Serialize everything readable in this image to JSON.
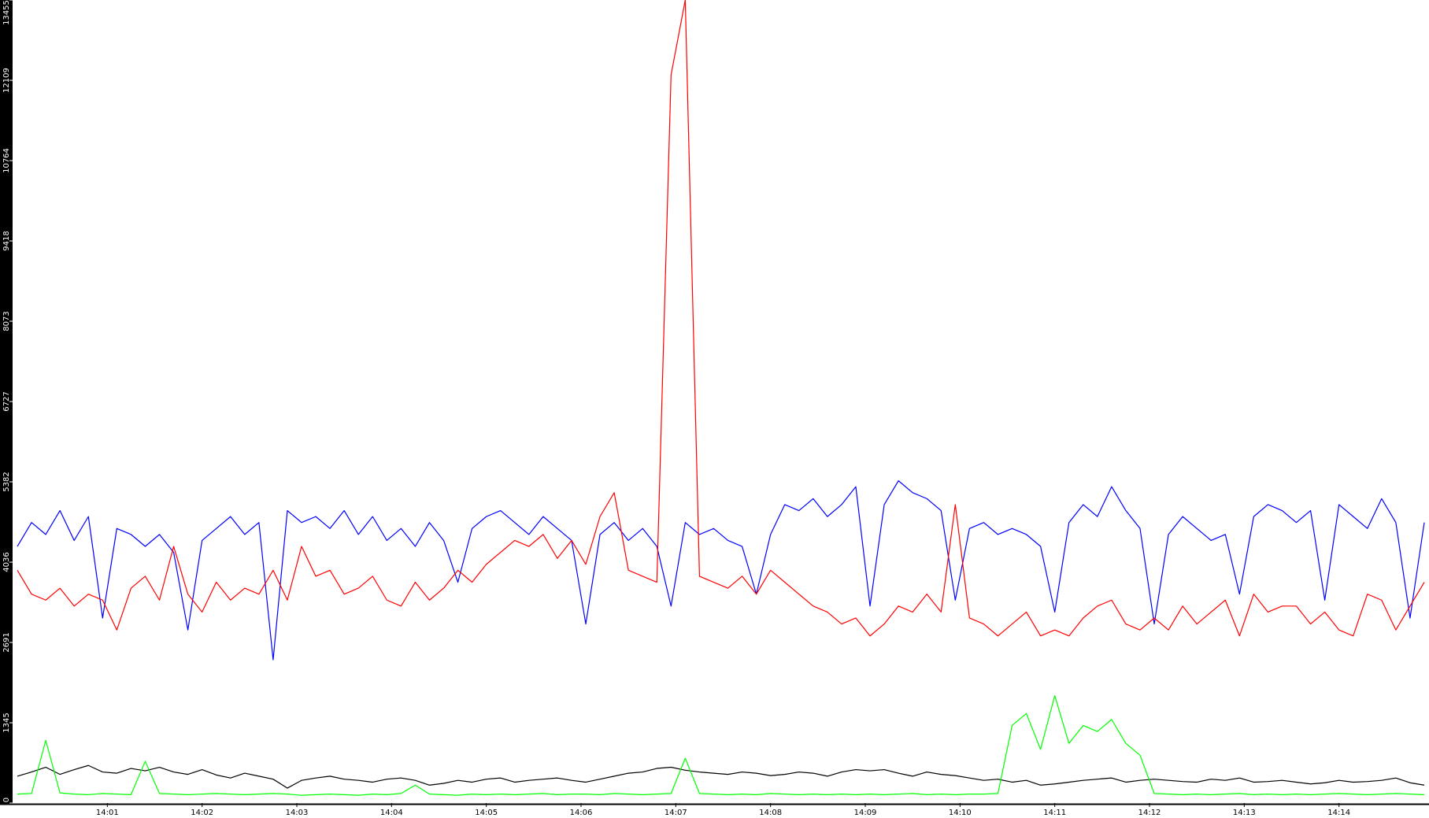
{
  "chart_data": {
    "type": "line",
    "grid": false,
    "xlim": [
      840,
      854.95
    ],
    "ylim": [
      0,
      13455
    ],
    "yticks": [
      0,
      1345,
      2691,
      4036,
      5382,
      6727,
      8073,
      9418,
      10764,
      12109,
      13455
    ],
    "xticks": [
      {
        "value": 841,
        "label": "14:01"
      },
      {
        "value": 842,
        "label": "14:02"
      },
      {
        "value": 843,
        "label": "14:03"
      },
      {
        "value": 844,
        "label": "14:04"
      },
      {
        "value": 845,
        "label": "14:05"
      },
      {
        "value": 846,
        "label": "14:06"
      },
      {
        "value": 847,
        "label": "14:07"
      },
      {
        "value": 848,
        "label": "14:08"
      },
      {
        "value": 849,
        "label": "14:09"
      },
      {
        "value": 850,
        "label": "14:10"
      },
      {
        "value": 851,
        "label": "14:11"
      },
      {
        "value": 852,
        "label": "14:12"
      },
      {
        "value": 853,
        "label": "14:13"
      },
      {
        "value": 854,
        "label": "14:14"
      }
    ],
    "x": [
      840.05,
      840.2,
      840.35,
      840.5,
      840.65,
      840.8,
      840.95,
      841.1,
      841.25,
      841.4,
      841.55,
      841.7,
      841.85,
      842.0,
      842.15,
      842.3,
      842.45,
      842.6,
      842.75,
      842.9,
      843.05,
      843.2,
      843.35,
      843.5,
      843.65,
      843.8,
      843.95,
      844.1,
      844.25,
      844.4,
      844.55,
      844.7,
      844.85,
      845.0,
      845.15,
      845.3,
      845.45,
      845.6,
      845.75,
      845.9,
      846.05,
      846.2,
      846.35,
      846.5,
      846.65,
      846.8,
      846.95,
      847.1,
      847.25,
      847.4,
      847.55,
      847.7,
      847.85,
      848.0,
      848.15,
      848.3,
      848.45,
      848.6,
      848.75,
      848.9,
      849.05,
      849.2,
      849.35,
      849.5,
      849.65,
      849.8,
      849.95,
      850.1,
      850.25,
      850.4,
      850.55,
      850.7,
      850.85,
      851.0,
      851.15,
      851.3,
      851.45,
      851.6,
      851.75,
      851.9,
      852.05,
      852.2,
      852.35,
      852.5,
      852.65,
      852.8,
      852.95,
      853.1,
      853.25,
      853.4,
      853.55,
      853.7,
      853.85,
      854.0,
      854.15,
      854.3,
      854.45,
      854.6,
      854.75,
      854.9
    ],
    "series": [
      {
        "color": "#0000ff",
        "values": [
          4300,
          4700,
          4500,
          4900,
          4400,
          4800,
          3100,
          4600,
          4500,
          4300,
          4500,
          4200,
          2900,
          4400,
          4600,
          4800,
          4500,
          4700,
          2400,
          4900,
          4700,
          4800,
          4600,
          4900,
          4500,
          4800,
          4400,
          4600,
          4300,
          4700,
          4400,
          3700,
          4600,
          4800,
          4900,
          4700,
          4500,
          4800,
          4600,
          4400,
          3000,
          4500,
          4700,
          4400,
          4600,
          4300,
          3300,
          4700,
          4500,
          4600,
          4400,
          4300,
          3500,
          4500,
          5000,
          4900,
          5100,
          4800,
          5000,
          5300,
          3300,
          5000,
          5400,
          5200,
          5100,
          4900,
          3400,
          4600,
          4700,
          4500,
          4600,
          4500,
          4300,
          3200,
          4700,
          5000,
          4800,
          5300,
          4900,
          4600,
          3000,
          4500,
          4800,
          4600,
          4400,
          4500,
          3500,
          4800,
          5000,
          4900,
          4700,
          4900,
          3400,
          5000,
          4800,
          4600,
          5100,
          4700,
          3100,
          4700
        ]
      },
      {
        "color": "#ff0000",
        "values": [
          3900,
          3500,
          3400,
          3600,
          3300,
          3500,
          3400,
          2900,
          3600,
          3800,
          3400,
          4300,
          3500,
          3200,
          3700,
          3400,
          3600,
          3500,
          3900,
          3400,
          4300,
          3800,
          3900,
          3500,
          3600,
          3800,
          3400,
          3300,
          3700,
          3400,
          3600,
          3900,
          3700,
          4000,
          4200,
          4400,
          4300,
          4500,
          4100,
          4400,
          4000,
          4800,
          5200,
          3900,
          3800,
          3700,
          12200,
          13455,
          3800,
          3700,
          3600,
          3800,
          3500,
          3900,
          3700,
          3500,
          3300,
          3200,
          3000,
          3100,
          2800,
          3000,
          3300,
          3200,
          3500,
          3200,
          5000,
          3100,
          3000,
          2800,
          3000,
          3200,
          2800,
          2900,
          2800,
          3100,
          3300,
          3400,
          3000,
          2900,
          3100,
          2900,
          3300,
          3000,
          3200,
          3400,
          2800,
          3500,
          3200,
          3300,
          3300,
          3000,
          3200,
          2900,
          2800,
          3500,
          3400,
          2900,
          3300,
          3700
        ]
      },
      {
        "color": "#000000",
        "values": [
          450,
          520,
          600,
          480,
          560,
          630,
          520,
          500,
          580,
          540,
          600,
          520,
          480,
          560,
          470,
          420,
          500,
          450,
          400,
          250,
          380,
          420,
          450,
          400,
          380,
          350,
          400,
          420,
          380,
          300,
          330,
          380,
          350,
          400,
          420,
          350,
          380,
          400,
          420,
          380,
          350,
          400,
          450,
          500,
          520,
          580,
          600,
          550,
          520,
          500,
          480,
          520,
          500,
          460,
          480,
          520,
          500,
          450,
          520,
          560,
          540,
          560,
          500,
          450,
          520,
          480,
          460,
          420,
          380,
          400,
          350,
          380,
          300,
          320,
          350,
          380,
          400,
          420,
          350,
          380,
          400,
          380,
          360,
          350,
          400,
          380,
          420,
          350,
          360,
          380,
          350,
          320,
          340,
          380,
          350,
          360,
          380,
          420,
          340,
          300
        ]
      },
      {
        "color": "#00ff00",
        "values": [
          150,
          160,
          1050,
          170,
          150,
          140,
          160,
          150,
          140,
          700,
          160,
          150,
          140,
          150,
          160,
          150,
          140,
          150,
          160,
          150,
          130,
          140,
          150,
          140,
          130,
          150,
          140,
          160,
          300,
          150,
          140,
          130,
          150,
          140,
          150,
          140,
          150,
          160,
          140,
          150,
          150,
          140,
          160,
          150,
          140,
          150,
          160,
          750,
          160,
          150,
          140,
          150,
          140,
          160,
          150,
          140,
          150,
          140,
          150,
          140,
          150,
          140,
          150,
          160,
          140,
          150,
          140,
          150,
          150,
          160,
          1300,
          1500,
          900,
          1800,
          1000,
          1300,
          1200,
          1400,
          1000,
          800,
          160,
          150,
          140,
          150,
          140,
          150,
          160,
          140,
          150,
          140,
          150,
          140,
          150,
          160,
          150,
          140,
          150,
          160,
          150,
          140
        ]
      }
    ]
  }
}
